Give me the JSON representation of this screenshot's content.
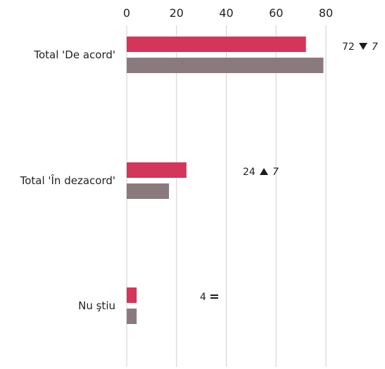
{
  "chart_data": {
    "type": "bar",
    "orientation": "horizontal",
    "categories": [
      "Total 'De acord'",
      "Total 'În dezacord'",
      "Nu ştiu"
    ],
    "series": [
      {
        "values": [
          72,
          24,
          4
        ]
      },
      {
        "values": [
          79,
          17,
          4
        ]
      }
    ],
    "annotations": [
      {
        "value": "72",
        "symbol": "down-triangle",
        "symbol_text": "▼",
        "change": "7"
      },
      {
        "value": "24",
        "symbol": "up-triangle",
        "symbol_text": "▲",
        "change": "7"
      },
      {
        "value": "4",
        "symbol": "equals",
        "symbol_text": "=",
        "change": ""
      }
    ],
    "xlim": [
      0,
      80
    ],
    "xticks": [
      "0",
      "20",
      "40",
      "60",
      "80"
    ],
    "grid": true,
    "colors": [
      "#d4355a",
      "#8a7a7e"
    ]
  }
}
